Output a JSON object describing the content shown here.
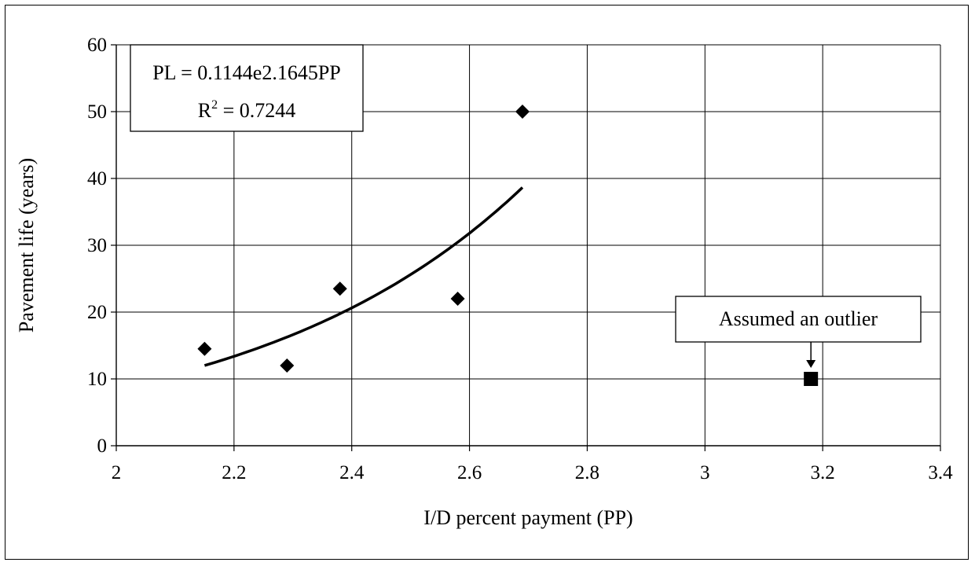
{
  "chart_data": {
    "type": "scatter",
    "xlabel": "I/D percent payment (PP)",
    "ylabel": "Pavement life (years)",
    "xlim": [
      2,
      3.4
    ],
    "ylim": [
      0,
      60
    ],
    "x_ticks": [
      "2",
      "2.2",
      "2.4",
      "2.6",
      "2.8",
      "3",
      "3.2",
      "3.4"
    ],
    "y_ticks": [
      "0",
      "10",
      "20",
      "30",
      "40",
      "50",
      "60"
    ],
    "grid": true,
    "series": [
      {
        "marker": "diamond",
        "points": [
          {
            "x": 2.15,
            "y": 14.5
          },
          {
            "x": 2.29,
            "y": 12
          },
          {
            "x": 2.38,
            "y": 23.5
          },
          {
            "x": 2.58,
            "y": 22
          },
          {
            "x": 2.69,
            "y": 50
          }
        ]
      },
      {
        "marker": "square",
        "points": [
          {
            "x": 3.18,
            "y": 10
          }
        ]
      }
    ],
    "trendline": {
      "type": "exponential",
      "a": 0.1144,
      "b": 2.1645,
      "x_range": [
        2.15,
        2.69
      ]
    },
    "equation_box": {
      "line1": "PL = 0.1144e2.1645PP",
      "line2_prefix": "R",
      "line2_sup": "2",
      "line2_suffix": " = 0.7244"
    },
    "annotation": {
      "text": "Assumed an outlier",
      "target": {
        "x": 3.18,
        "y": 10
      }
    },
    "colors": {
      "marker": "#000000",
      "grid": "#000000",
      "line": "#000000"
    }
  }
}
